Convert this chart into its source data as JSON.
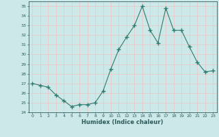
{
  "x": [
    0,
    1,
    2,
    3,
    4,
    5,
    6,
    7,
    8,
    9,
    10,
    11,
    12,
    13,
    14,
    15,
    16,
    17,
    18,
    19,
    20,
    21,
    22,
    23
  ],
  "y": [
    27.0,
    26.8,
    26.6,
    25.8,
    25.2,
    24.6,
    24.8,
    24.8,
    25.0,
    26.2,
    28.5,
    30.5,
    31.8,
    33.0,
    35.0,
    32.5,
    31.2,
    34.8,
    32.5,
    32.5,
    30.8,
    29.2,
    28.2,
    28.3
  ],
  "xlim": [
    -0.5,
    23.5
  ],
  "ylim": [
    24,
    35.5
  ],
  "yticks": [
    24,
    25,
    26,
    27,
    28,
    29,
    30,
    31,
    32,
    33,
    34,
    35
  ],
  "xticks": [
    0,
    1,
    2,
    3,
    4,
    5,
    6,
    7,
    8,
    9,
    10,
    11,
    12,
    13,
    14,
    15,
    16,
    17,
    18,
    19,
    20,
    21,
    22,
    23
  ],
  "xlabel": "Humidex (Indice chaleur)",
  "line_color": "#2d7a6e",
  "marker": "+",
  "bg_color": "#cce8e8",
  "grid_color": "#e8c8c8",
  "tick_label_color": "#2d5a5a",
  "xlabel_color": "#2d5a5a"
}
